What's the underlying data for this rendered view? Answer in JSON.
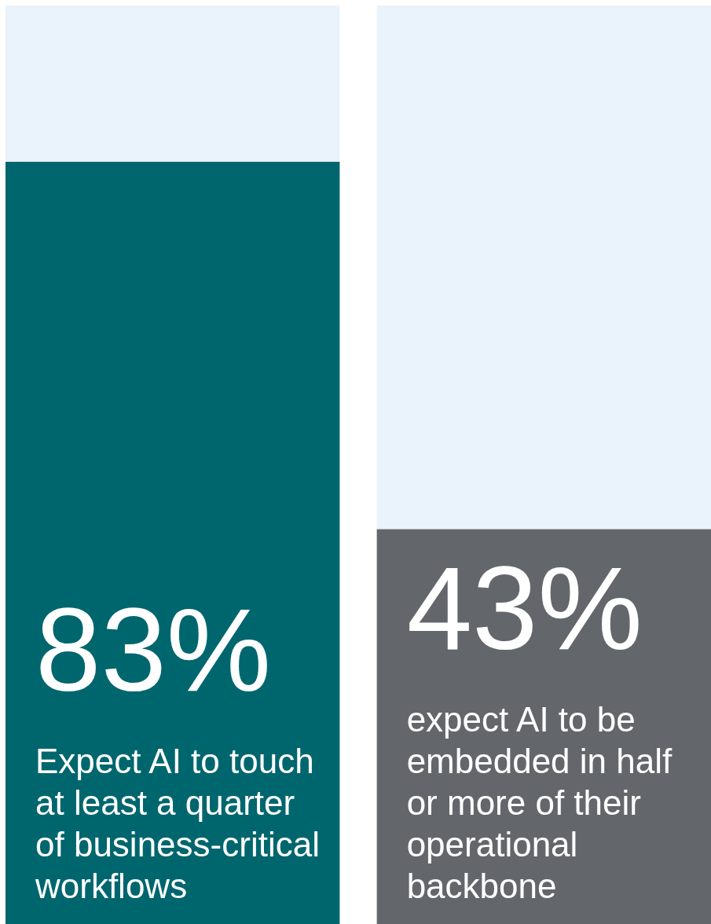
{
  "chart_data": {
    "type": "bar",
    "stacked": true,
    "categories": [
      "Expect AI to touch at least a quarter of business-critical workflows",
      "expect AI to be embedded in half or more of their operational backbone"
    ],
    "ylim": [
      0,
      100
    ],
    "series": [
      {
        "colors": [
          "#00666e",
          "#63676c"
        ],
        "values": [
          83,
          43
        ],
        "value_labels": [
          "83%",
          "43%"
        ]
      },
      {
        "colors": [
          "#eaf2fb",
          "#eaf2fb"
        ],
        "values": [
          17,
          57
        ]
      }
    ]
  }
}
